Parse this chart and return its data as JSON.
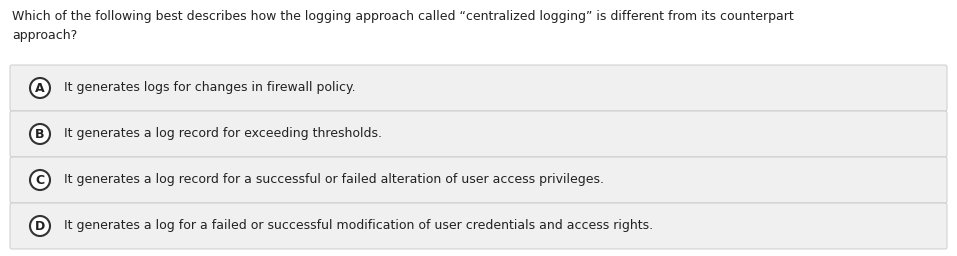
{
  "question": "Which of the following best describes how the logging approach called “centralized logging” is different from its counterpart\napproach?",
  "options": [
    {
      "label": "A",
      "text": "It generates logs for changes in firewall policy."
    },
    {
      "label": "B",
      "text": "It generates a log record for exceeding thresholds."
    },
    {
      "label": "C",
      "text": "It generates a log record for a successful or failed alteration of user access privileges."
    },
    {
      "label": "D",
      "text": "It generates a log for a failed or successful modification of user credentials and access rights."
    }
  ],
  "background_color": "#ffffff",
  "option_box_color": "#f0f0f0",
  "option_box_edge_color": "#cccccc",
  "text_color": "#222222",
  "circle_edge_color": "#333333",
  "circle_face_color": "#ffffff",
  "question_fontsize": 9.0,
  "option_fontsize": 9.0,
  "label_fontsize": 9.0,
  "fig_width": 9.57,
  "fig_height": 2.56,
  "dpi": 100
}
